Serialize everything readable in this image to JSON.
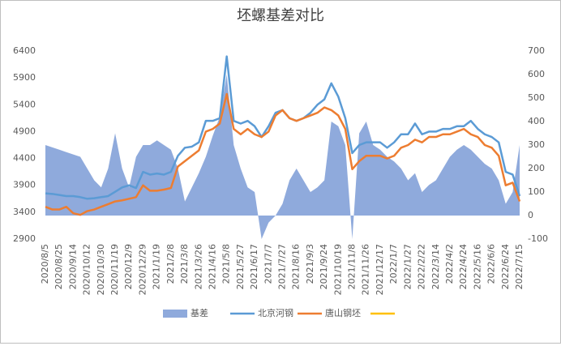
{
  "chart_data": {
    "type": "combo",
    "title": "坯螺基差对比",
    "categories": [
      "2020/8/5",
      null,
      "2020/8/25",
      null,
      "2020/9/14",
      null,
      "2020/10/12",
      null,
      "2020/10/30",
      null,
      "2020/11/19",
      null,
      "2020/12/9",
      null,
      "2020/12/29",
      null,
      "2021/1/19",
      null,
      "2021/2/8",
      null,
      "2021/3/8",
      null,
      "2021/3/26",
      null,
      "2021/4/16",
      null,
      "2021/5/8",
      null,
      "2021/5/27",
      null,
      "2021/6/17",
      null,
      "2021/7/7",
      null,
      "2021/7/27",
      null,
      "2021/8/16",
      null,
      "2021/9/3",
      null,
      "2021/9/24",
      null,
      "2021/10/19",
      null,
      "2021/11/8",
      null,
      "2021/11/26",
      null,
      "2021/12/17",
      null,
      "2022/1/7",
      null,
      "2022/1/27",
      null,
      "2022/2/22",
      null,
      "2022/3/14",
      null,
      "2022/4/2",
      null,
      "2022/4/24",
      null,
      "2022/5/16",
      null,
      "2022/6/6",
      null,
      "2022/6/24",
      null,
      "2022/7/15"
    ],
    "series": [
      {
        "name": "基差",
        "type": "area",
        "axis": "y2",
        "color": "#8faadc",
        "values": [
          300,
          290,
          280,
          270,
          260,
          250,
          200,
          150,
          120,
          200,
          350,
          200,
          120,
          250,
          300,
          300,
          320,
          300,
          280,
          200,
          60,
          120,
          180,
          250,
          340,
          420,
          600,
          300,
          200,
          120,
          100,
          -100,
          -30,
          0,
          50,
          150,
          200,
          150,
          100,
          120,
          150,
          400,
          380,
          300,
          -100,
          350,
          400,
          300,
          280,
          250,
          230,
          200,
          150,
          180,
          100,
          130,
          150,
          200,
          250,
          280,
          300,
          280,
          250,
          220,
          200,
          150,
          50,
          100,
          300
        ]
      },
      {
        "name": "北京河钢",
        "type": "line",
        "color": "#5b9bd5",
        "values": [
          3750,
          3740,
          3720,
          3700,
          3700,
          3680,
          3650,
          3660,
          3680,
          3700,
          3780,
          3860,
          3900,
          3850,
          4150,
          4100,
          4120,
          4100,
          4150,
          4450,
          4600,
          4620,
          4700,
          5100,
          5100,
          5150,
          6300,
          5100,
          5050,
          5100,
          5000,
          4800,
          5000,
          5250,
          5300,
          5150,
          5100,
          5150,
          5250,
          5400,
          5500,
          5800,
          5550,
          5150,
          4500,
          4650,
          4700,
          4700,
          4700,
          4600,
          4700,
          4850,
          4850,
          5050,
          4850,
          4900,
          4900,
          4950,
          4950,
          5000,
          5000,
          5100,
          4950,
          4850,
          4800,
          4700,
          4150,
          4100,
          3700
        ]
      },
      {
        "name": "唐山钢坯",
        "type": "line",
        "color": "#ed7d31",
        "values": [
          3500,
          3450,
          3450,
          3500,
          3380,
          3350,
          3420,
          3450,
          3500,
          3550,
          3600,
          3620,
          3650,
          3680,
          3900,
          3800,
          3800,
          3820,
          3850,
          4250,
          4350,
          4450,
          4550,
          4900,
          4950,
          5050,
          5600,
          4950,
          4850,
          4950,
          4850,
          4800,
          4900,
          5200,
          5300,
          5150,
          5100,
          5150,
          5200,
          5250,
          5350,
          5300,
          5200,
          4950,
          4200,
          4350,
          4450,
          4450,
          4450,
          4400,
          4450,
          4600,
          4650,
          4750,
          4700,
          4800,
          4800,
          4850,
          4850,
          4900,
          4950,
          4850,
          4800,
          4650,
          4600,
          4450,
          3900,
          3950,
          3600
        ]
      },
      {
        "name": "",
        "type": "line",
        "color": "#ffc000",
        "values": [
          null,
          null,
          null,
          null,
          null,
          null,
          null,
          null,
          null,
          null,
          null,
          null,
          null,
          null,
          null,
          null,
          null,
          null,
          null,
          null,
          null,
          null,
          null,
          null,
          null,
          null,
          null,
          null,
          null,
          null,
          null,
          null,
          null,
          null,
          null,
          null,
          null,
          null,
          null,
          null,
          null,
          null,
          null,
          null,
          null,
          null,
          null,
          null,
          null,
          null,
          null,
          null,
          null,
          null,
          null,
          null,
          null,
          null,
          null,
          null,
          null,
          null,
          null,
          null,
          null,
          null,
          null,
          null,
          null
        ]
      }
    ],
    "ylim": [
      2900,
      6400
    ],
    "yticks": [
      2900,
      3400,
      3900,
      4400,
      4900,
      5400,
      5900,
      6400
    ],
    "y2lim": [
      -100,
      700
    ],
    "y2ticks": [
      -100,
      0,
      100,
      200,
      300,
      400,
      500,
      600,
      700
    ]
  }
}
